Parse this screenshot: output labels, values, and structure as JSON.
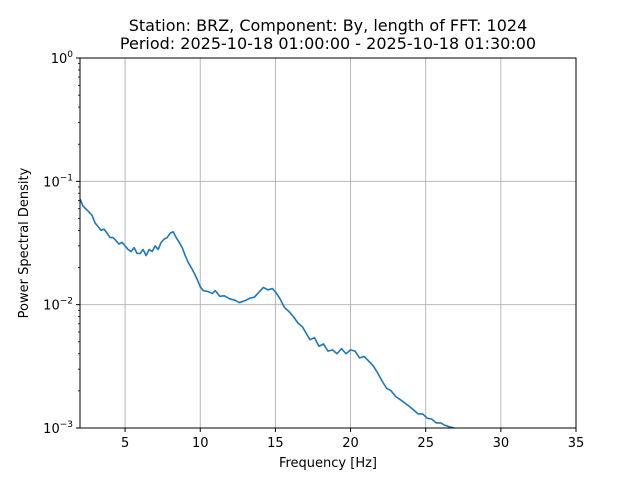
{
  "chart_data": {
    "type": "line",
    "title_line1": "Station: BRZ, Component: By, length of FFT: 1024",
    "title_line2": "Period: 2025-10-18 01:00:00 - 2025-10-18 01:30:00",
    "xlabel": "Frequency [Hz]",
    "ylabel": "Power Spectral Density",
    "xlim": [
      2,
      35
    ],
    "ylim": [
      0.001,
      1
    ],
    "yscale": "log",
    "grid": true,
    "line_color": "#1f77b4",
    "x_ticks": [
      5,
      10,
      15,
      20,
      25,
      30,
      35
    ],
    "x_tick_labels": [
      "5",
      "10",
      "15",
      "20",
      "25",
      "30",
      "35"
    ],
    "y_ticks": [
      {
        "value": 0.001,
        "base": "10",
        "exp": "−3"
      },
      {
        "value": 0.01,
        "base": "10",
        "exp": "−2"
      },
      {
        "value": 0.1,
        "base": "10",
        "exp": "−1"
      },
      {
        "value": 1,
        "base": "10",
        "exp": "0"
      }
    ],
    "series": [
      {
        "x": [
          2.0,
          2.2,
          2.5,
          2.8,
          3.0,
          3.2,
          3.4,
          3.6,
          3.8,
          4.0,
          4.2,
          4.4,
          4.6,
          4.8,
          5.0,
          5.2,
          5.4,
          5.6,
          5.8,
          6.0,
          6.2,
          6.4,
          6.6,
          6.8,
          7.0,
          7.2,
          7.4,
          7.6,
          7.8,
          8.0,
          8.2,
          8.4,
          8.6,
          8.8,
          9.0,
          9.2,
          9.4,
          9.6,
          9.8,
          10.0,
          10.2,
          10.5,
          10.8,
          11.0,
          11.3,
          11.6,
          12.0,
          12.3,
          12.6,
          13.0,
          13.3,
          13.6,
          13.9,
          14.2,
          14.5,
          14.8,
          15.0,
          15.3,
          15.6,
          15.9,
          16.2,
          16.5,
          16.8,
          17.0,
          17.3,
          17.6,
          17.9,
          18.2,
          18.5,
          18.8,
          19.1,
          19.4,
          19.7,
          20.0,
          20.3,
          20.6,
          20.9,
          21.2,
          21.5,
          21.8,
          22.1,
          22.4,
          22.7,
          23.0,
          23.3,
          23.6,
          23.9,
          24.2,
          24.5,
          24.8,
          25.1,
          25.4,
          25.7,
          26.0,
          26.3,
          26.6,
          26.9
        ],
        "y": [
          0.072,
          0.063,
          0.058,
          0.053,
          0.046,
          0.043,
          0.04,
          0.041,
          0.038,
          0.035,
          0.035,
          0.033,
          0.031,
          0.032,
          0.03,
          0.028,
          0.027,
          0.029,
          0.026,
          0.026,
          0.028,
          0.025,
          0.028,
          0.027,
          0.03,
          0.028,
          0.032,
          0.034,
          0.035,
          0.038,
          0.039,
          0.035,
          0.032,
          0.029,
          0.025,
          0.022,
          0.02,
          0.018,
          0.016,
          0.014,
          0.013,
          0.0128,
          0.0123,
          0.013,
          0.0117,
          0.0118,
          0.0111,
          0.0109,
          0.0104,
          0.0108,
          0.0113,
          0.0115,
          0.0126,
          0.0138,
          0.0132,
          0.0135,
          0.0127,
          0.0112,
          0.0095,
          0.0088,
          0.008,
          0.0071,
          0.0066,
          0.006,
          0.0052,
          0.0054,
          0.0046,
          0.0048,
          0.0042,
          0.0043,
          0.004,
          0.0044,
          0.004,
          0.0043,
          0.0042,
          0.0037,
          0.0038,
          0.0035,
          0.0032,
          0.0028,
          0.0024,
          0.0021,
          0.002,
          0.0018,
          0.0017,
          0.0016,
          0.0015,
          0.0014,
          0.0013,
          0.0013,
          0.0012,
          0.00118,
          0.0011,
          0.0011,
          0.00105,
          0.00102,
          0.001
        ]
      }
    ]
  }
}
